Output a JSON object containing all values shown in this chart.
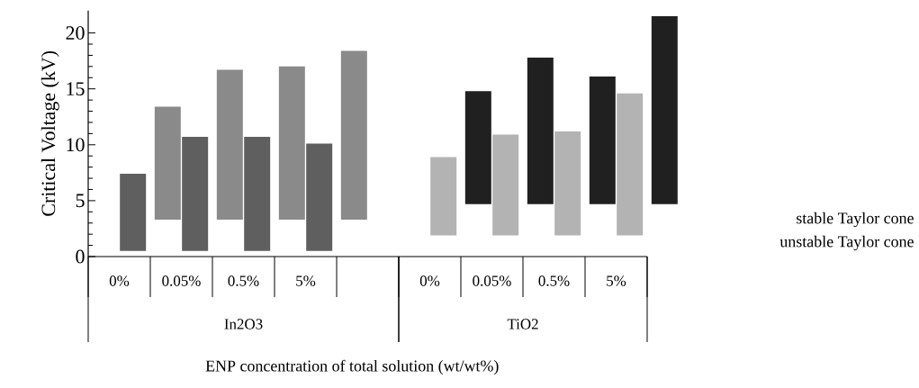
{
  "chart_data": {
    "type": "bar",
    "ylabel": "Critical Voltage (kV)",
    "xlabel": "ENP concentration of total solution (wt/wt%)",
    "categories": [
      "0%",
      "0.05%",
      "0.5%",
      "5%",
      null,
      "0%",
      "0.05%",
      "0.5%",
      "5%",
      null
    ],
    "annotations": [
      "In2O3",
      "TiO2"
    ],
    "series": [
      {
        "name": "stable Taylor cone",
        "values": [
          null,
          10.1,
          13.4,
          13.7,
          15.1,
          null,
          10.1,
          13.1,
          11.4,
          16.8
        ],
        "base": [
          null,
          3.3,
          3.3,
          3.3,
          3.3,
          null,
          4.7,
          4.7,
          4.7,
          4.7
        ],
        "colors": [
          "#8a8a8a",
          "#8a8a8a",
          "#8a8a8a",
          "#8a8a8a",
          "#8a8a8a",
          "#202020",
          "#202020",
          "#202020",
          "#202020",
          "#202020"
        ]
      },
      {
        "name": "unstable Taylor cone",
        "values": [
          6.9,
          10.2,
          10.2,
          9.6,
          null,
          7.0,
          9.0,
          9.3,
          12.7,
          null
        ],
        "base": [
          0.5,
          0.5,
          0.5,
          0.5,
          null,
          1.9,
          1.9,
          1.9,
          1.9,
          null
        ],
        "colors": [
          "#5f5f5f",
          "#5f5f5f",
          "#5f5f5f",
          "#5f5f5f",
          "#5f5f5f",
          "#b3b3b3",
          "#b3b3b3",
          "#b3b3b3",
          "#b3b3b3",
          "#b3b3b3"
        ]
      }
    ],
    "ylim": [
      0,
      22
    ],
    "yticks": [
      0,
      5,
      10,
      15,
      20
    ]
  }
}
